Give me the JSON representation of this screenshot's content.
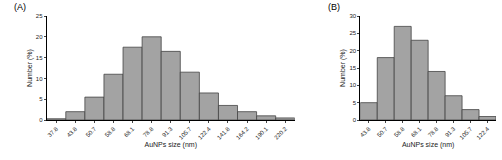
{
  "chart_data": [
    {
      "type": "bar",
      "title": "(A)",
      "x_label": "AuNPs size (nm)",
      "y_label": "Number (%)",
      "categories": [
        "37.8",
        "43.8",
        "50.7",
        "58.8",
        "68.1",
        "78.8",
        "91.3",
        "105.7",
        "122.4",
        "141.8",
        "164.2",
        "190.1",
        "220.2"
      ],
      "values": [
        0.3,
        2,
        5.5,
        11,
        17.5,
        20,
        16.5,
        11.5,
        6.5,
        3.5,
        2,
        1,
        0.5
      ],
      "color": "#a3a3a3",
      "ylim": [
        0,
        25
      ],
      "yticks": [
        0,
        5,
        10,
        15,
        20,
        25
      ],
      "grid": false
    },
    {
      "type": "bar",
      "title": "(B)",
      "x_label": "AuNPs size (nm)",
      "y_label": "Number (%)",
      "categories": [
        "43.8",
        "50.7",
        "58.8",
        "68.1",
        "78.8",
        "91.3",
        "105.7",
        "122.4"
      ],
      "values": [
        5,
        18,
        27,
        23,
        14,
        7,
        3,
        1
      ],
      "color": "#a3a3a3",
      "ylim": [
        0,
        30
      ],
      "yticks": [
        0,
        5,
        10,
        15,
        20,
        25,
        30
      ],
      "grid": false
    }
  ]
}
